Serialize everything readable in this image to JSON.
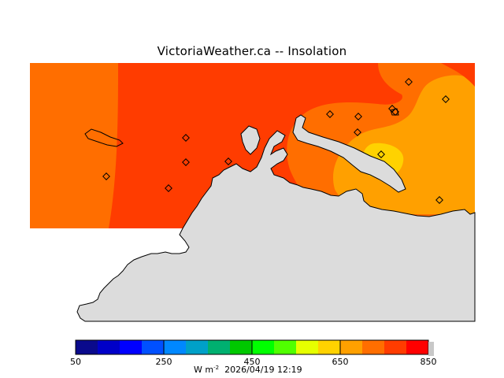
{
  "title": "VictoriaWeather.ca -- Insolation",
  "colorbar": {
    "min": 50,
    "max": 850,
    "tick_labels": [
      "50",
      "250",
      "450",
      "650",
      "850"
    ],
    "colors": [
      "#0a0a8c",
      "#0000c8",
      "#0000ff",
      "#0050ff",
      "#0088ff",
      "#00a0c8",
      "#00b070",
      "#00c800",
      "#00ff00",
      "#50ff00",
      "#e6ff00",
      "#ffd200",
      "#ffa000",
      "#ff6e00",
      "#ff3c00",
      "#ff0000"
    ],
    "units_prefix": "W m",
    "units_exponent": "-2",
    "timestamp": "2026/04/19 12:19"
  },
  "map": {
    "land_color": "#dcdcdc",
    "outline_color": "#000000",
    "field_colors": {
      "band_600_650": "#ffa000",
      "band_650_700": "#ff6e00",
      "band_700_750": "#ff3c00",
      "band_750_800": "#ffd200"
    },
    "station_count": 14
  }
}
